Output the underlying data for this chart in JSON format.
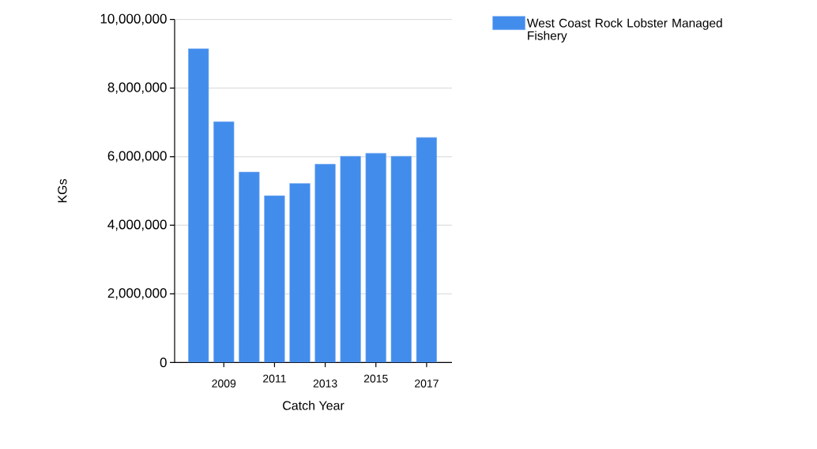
{
  "chart_data": {
    "type": "bar",
    "xlabel": "Catch Year",
    "ylabel": "KGs",
    "categories": [
      null,
      "2009",
      null,
      "2011",
      null,
      "2013",
      null,
      "2015",
      null,
      "2017"
    ],
    "series": [
      {
        "name": "West Coast Rock Lobster Managed Fishery",
        "color": "#428cec",
        "values": [
          9150000,
          7020000,
          5550000,
          4860000,
          5220000,
          5780000,
          6010000,
          6100000,
          6010000,
          6560000
        ]
      }
    ],
    "ylim": [
      0,
      10000000
    ],
    "yticks": [
      0,
      {
        "value": 2000000,
        "label": "2,000,000"
      },
      {
        "value": 4000000,
        "label": "4,000,000"
      },
      {
        "value": 6000000,
        "label": "6,000,000"
      },
      {
        "value": 8000000,
        "label": "8,000,000"
      },
      {
        "value": 10000000,
        "label": "10,000,000"
      }
    ],
    "grid": "y",
    "legend": "top right"
  }
}
